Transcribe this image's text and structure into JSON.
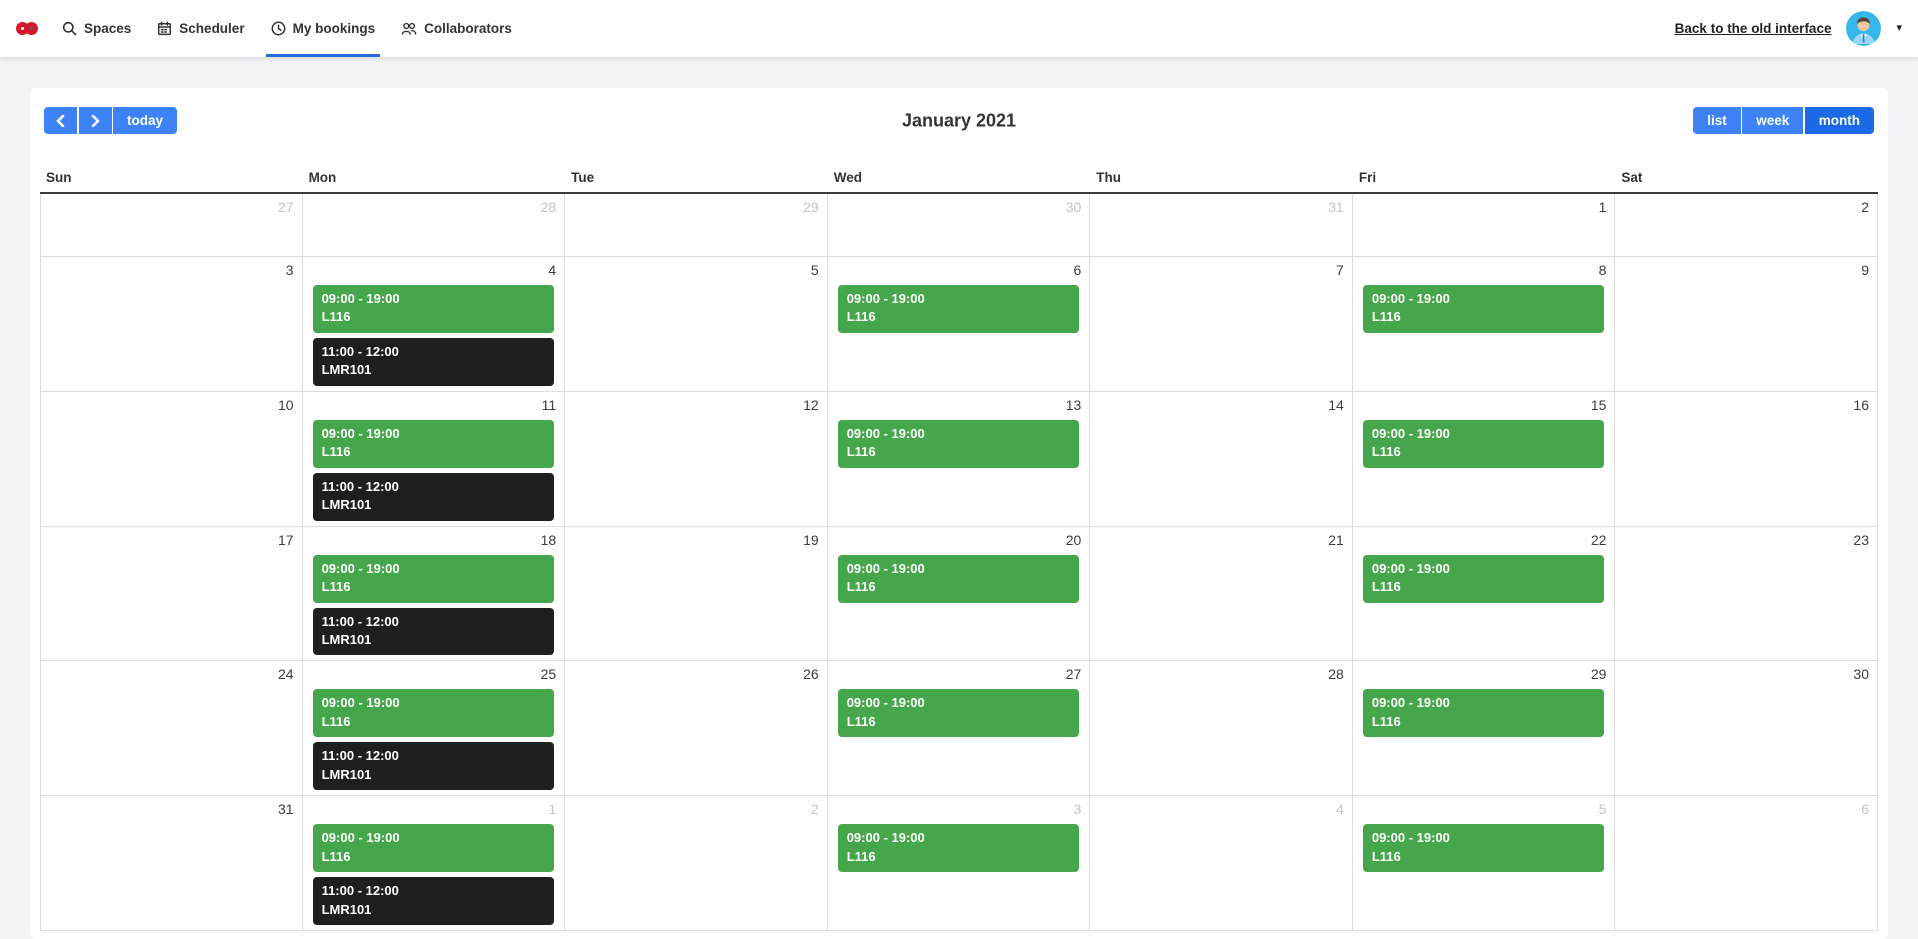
{
  "nav": {
    "items": [
      {
        "label": "Spaces",
        "icon": "search-icon"
      },
      {
        "label": "Scheduler",
        "icon": "calendar-icon"
      },
      {
        "label": "My bookings",
        "icon": "clock-icon",
        "active": true
      },
      {
        "label": "Collaborators",
        "icon": "people-icon"
      }
    ],
    "back_link": "Back to the old interface"
  },
  "toolbar": {
    "today_label": "today",
    "title": "January 2021",
    "views": [
      "list",
      "week",
      "month"
    ],
    "active_view": "month"
  },
  "calendar": {
    "day_headers": [
      "Sun",
      "Mon",
      "Tue",
      "Wed",
      "Thu",
      "Fri",
      "Sat"
    ],
    "weeks": [
      [
        {
          "day": "27",
          "other": true
        },
        {
          "day": "28",
          "other": true
        },
        {
          "day": "29",
          "other": true
        },
        {
          "day": "30",
          "other": true
        },
        {
          "day": "31",
          "other": true
        },
        {
          "day": "1"
        },
        {
          "day": "2"
        }
      ],
      [
        {
          "day": "3"
        },
        {
          "day": "4",
          "events": [
            {
              "time": "09:00 - 19:00",
              "room": "L116",
              "type": "green"
            },
            {
              "time": "11:00 - 12:00",
              "room": "LMR101",
              "type": "dark"
            }
          ]
        },
        {
          "day": "5"
        },
        {
          "day": "6",
          "events": [
            {
              "time": "09:00 - 19:00",
              "room": "L116",
              "type": "green"
            }
          ]
        },
        {
          "day": "7"
        },
        {
          "day": "8",
          "events": [
            {
              "time": "09:00 - 19:00",
              "room": "L116",
              "type": "green"
            }
          ]
        },
        {
          "day": "9"
        }
      ],
      [
        {
          "day": "10"
        },
        {
          "day": "11",
          "events": [
            {
              "time": "09:00 - 19:00",
              "room": "L116",
              "type": "green"
            },
            {
              "time": "11:00 - 12:00",
              "room": "LMR101",
              "type": "dark"
            }
          ]
        },
        {
          "day": "12"
        },
        {
          "day": "13",
          "events": [
            {
              "time": "09:00 - 19:00",
              "room": "L116",
              "type": "green"
            }
          ]
        },
        {
          "day": "14"
        },
        {
          "day": "15",
          "events": [
            {
              "time": "09:00 - 19:00",
              "room": "L116",
              "type": "green"
            }
          ]
        },
        {
          "day": "16"
        }
      ],
      [
        {
          "day": "17"
        },
        {
          "day": "18",
          "events": [
            {
              "time": "09:00 - 19:00",
              "room": "L116",
              "type": "green"
            },
            {
              "time": "11:00 - 12:00",
              "room": "LMR101",
              "type": "dark"
            }
          ]
        },
        {
          "day": "19"
        },
        {
          "day": "20",
          "events": [
            {
              "time": "09:00 - 19:00",
              "room": "L116",
              "type": "green"
            }
          ]
        },
        {
          "day": "21"
        },
        {
          "day": "22",
          "events": [
            {
              "time": "09:00 - 19:00",
              "room": "L116",
              "type": "green"
            }
          ]
        },
        {
          "day": "23"
        }
      ],
      [
        {
          "day": "24"
        },
        {
          "day": "25",
          "events": [
            {
              "time": "09:00 - 19:00",
              "room": "L116",
              "type": "green"
            },
            {
              "time": "11:00 - 12:00",
              "room": "LMR101",
              "type": "dark"
            }
          ]
        },
        {
          "day": "26"
        },
        {
          "day": "27",
          "events": [
            {
              "time": "09:00 - 19:00",
              "room": "L116",
              "type": "green"
            }
          ]
        },
        {
          "day": "28"
        },
        {
          "day": "29",
          "events": [
            {
              "time": "09:00 - 19:00",
              "room": "L116",
              "type": "green"
            }
          ]
        },
        {
          "day": "30"
        }
      ],
      [
        {
          "day": "31"
        },
        {
          "day": "1",
          "other": true,
          "events": [
            {
              "time": "09:00 - 19:00",
              "room": "L116",
              "type": "green"
            },
            {
              "time": "11:00 - 12:00",
              "room": "LMR101",
              "type": "dark"
            }
          ]
        },
        {
          "day": "2",
          "other": true
        },
        {
          "day": "3",
          "other": true,
          "events": [
            {
              "time": "09:00 - 19:00",
              "room": "L116",
              "type": "green"
            }
          ]
        },
        {
          "day": "4",
          "other": true
        },
        {
          "day": "5",
          "other": true,
          "events": [
            {
              "time": "09:00 - 19:00",
              "room": "L116",
              "type": "green"
            }
          ]
        },
        {
          "day": "6",
          "other": true
        }
      ]
    ]
  },
  "colors": {
    "event_green": "#46a64b",
    "event_dark": "#1f1f1f",
    "button_blue": "#3d82f7",
    "button_active": "#1b69e4",
    "tab_underline": "#2a6bdb",
    "logo_red": "#d7182a"
  }
}
